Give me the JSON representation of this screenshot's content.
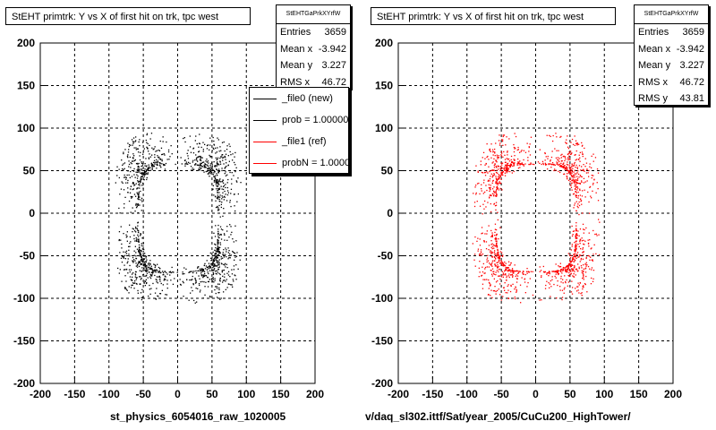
{
  "chart_data": [
    {
      "type": "scatter",
      "title": "StEHT primtrk: Y vs X of first hit on trk, tpc west",
      "xlim": [
        -200,
        200
      ],
      "ylim": [
        -200,
        200
      ],
      "x_ticks": [
        "-200",
        "-150",
        "-100",
        "-50",
        "0",
        "50",
        "100",
        "150",
        "200"
      ],
      "y_ticks": [
        "200",
        "150",
        "100",
        "50",
        "0",
        "-50",
        "-100",
        "-150",
        "-200"
      ],
      "grid": true,
      "point_color": "#000000",
      "ring": {
        "x_range": [
          -58,
          58
        ],
        "y_range": [
          -68,
          58
        ]
      },
      "stats": {
        "name": "StEHTGaPrkXYrfW",
        "rows": [
          {
            "label": "Entries",
            "value": "3659"
          },
          {
            "label": "Mean x",
            "value": "-3.942"
          },
          {
            "label": "Mean y",
            "value": "3.227"
          },
          {
            "label": "RMS x",
            "value": "46.72"
          }
        ]
      },
      "legend": [
        {
          "label": "_file0 (new)",
          "color": "#000000"
        },
        {
          "label": "prob = 1.000000",
          "color": "#000000"
        },
        {
          "label": "_file1 (ref)",
          "color": "#ff0000"
        },
        {
          "label": "probN = 1.000000",
          "color": "#ff0000"
        }
      ],
      "xfile": "st_physics_6054016_raw_1020005"
    },
    {
      "type": "scatter",
      "title": "StEHT primtrk: Y vs X of first hit on trk, tpc west",
      "xlim": [
        -200,
        200
      ],
      "ylim": [
        -200,
        200
      ],
      "x_ticks": [
        "-200",
        "-150",
        "-100",
        "-50",
        "0",
        "50",
        "100",
        "150",
        "200"
      ],
      "y_ticks": [
        "200",
        "150",
        "100",
        "50",
        "0",
        "-50",
        "-100",
        "-150",
        "-200"
      ],
      "grid": true,
      "point_color": "#ff0000",
      "ring": {
        "x_range": [
          -58,
          58
        ],
        "y_range": [
          -68,
          58
        ]
      },
      "stats": {
        "name": "StEHTGaPrkXYrfW",
        "rows": [
          {
            "label": "Entries",
            "value": "3659"
          },
          {
            "label": "Mean x",
            "value": "-3.942"
          },
          {
            "label": "Mean y",
            "value": "3.227"
          },
          {
            "label": "RMS x",
            "value": "46.72"
          },
          {
            "label": "RMS y",
            "value": "43.81"
          }
        ]
      },
      "xfile": "v/daq_sl302.ittf/Sat/year_2005/CuCu200_HighTower/"
    }
  ]
}
